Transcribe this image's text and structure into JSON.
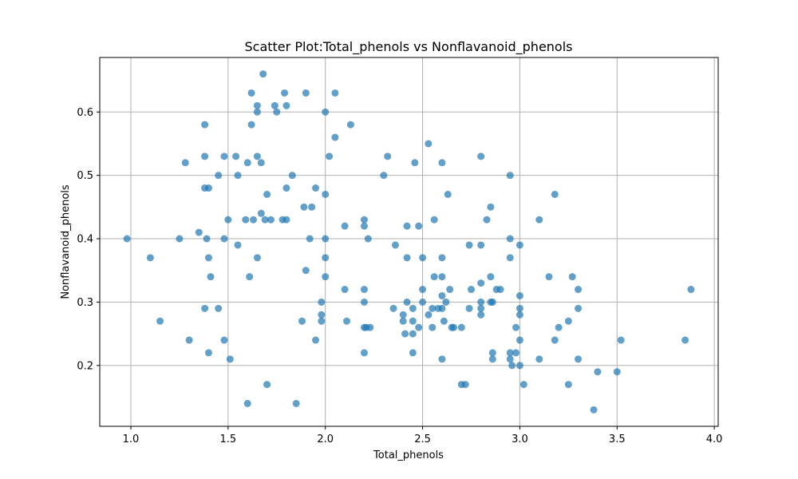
{
  "chart_data": {
    "type": "scatter",
    "title": "Scatter Plot:Total_phenols vs Nonflavanoid_phenols",
    "xlabel": "Total_phenols",
    "ylabel": "Nonflavanoid_phenols",
    "xlim": [
      0.84,
      4.02
    ],
    "ylim": [
      0.104,
      0.686
    ],
    "xticks": [
      1.0,
      1.5,
      2.0,
      2.5,
      3.0,
      3.5,
      4.0
    ],
    "xtick_labels": [
      "1.0",
      "1.5",
      "2.0",
      "2.5",
      "3.0",
      "3.5",
      "4.0"
    ],
    "yticks": [
      0.2,
      0.3,
      0.4,
      0.5,
      0.6
    ],
    "ytick_labels": [
      "0.2",
      "0.3",
      "0.4",
      "0.5",
      "0.6"
    ],
    "grid": true,
    "marker_color": "#1f77b4",
    "marker_alpha": 0.7,
    "points": [
      [
        0.98,
        0.4
      ],
      [
        1.1,
        0.37
      ],
      [
        1.15,
        0.27
      ],
      [
        1.25,
        0.4
      ],
      [
        1.28,
        0.52
      ],
      [
        1.3,
        0.24
      ],
      [
        1.35,
        0.41
      ],
      [
        1.38,
        0.58
      ],
      [
        1.38,
        0.53
      ],
      [
        1.38,
        0.48
      ],
      [
        1.38,
        0.29
      ],
      [
        1.39,
        0.4
      ],
      [
        1.4,
        0.48
      ],
      [
        1.4,
        0.37
      ],
      [
        1.4,
        0.22
      ],
      [
        1.41,
        0.34
      ],
      [
        1.45,
        0.5
      ],
      [
        1.45,
        0.29
      ],
      [
        1.48,
        0.53
      ],
      [
        1.48,
        0.4
      ],
      [
        1.48,
        0.24
      ],
      [
        1.5,
        0.43
      ],
      [
        1.51,
        0.21
      ],
      [
        1.54,
        0.53
      ],
      [
        1.55,
        0.5
      ],
      [
        1.55,
        0.39
      ],
      [
        1.59,
        0.43
      ],
      [
        1.6,
        0.52
      ],
      [
        1.6,
        0.14
      ],
      [
        1.61,
        0.34
      ],
      [
        1.62,
        0.63
      ],
      [
        1.62,
        0.58
      ],
      [
        1.63,
        0.43
      ],
      [
        1.65,
        0.61
      ],
      [
        1.65,
        0.6
      ],
      [
        1.65,
        0.53
      ],
      [
        1.65,
        0.37
      ],
      [
        1.67,
        0.52
      ],
      [
        1.67,
        0.44
      ],
      [
        1.68,
        0.66
      ],
      [
        1.69,
        0.43
      ],
      [
        1.7,
        0.47
      ],
      [
        1.7,
        0.17
      ],
      [
        1.72,
        0.43
      ],
      [
        1.74,
        0.61
      ],
      [
        1.75,
        0.6
      ],
      [
        1.78,
        0.43
      ],
      [
        1.79,
        0.63
      ],
      [
        1.8,
        0.61
      ],
      [
        1.8,
        0.48
      ],
      [
        1.8,
        0.43
      ],
      [
        1.83,
        0.5
      ],
      [
        1.85,
        0.14
      ],
      [
        1.88,
        0.27
      ],
      [
        1.89,
        0.45
      ],
      [
        1.9,
        0.63
      ],
      [
        1.9,
        0.35
      ],
      [
        1.92,
        0.4
      ],
      [
        1.93,
        0.45
      ],
      [
        1.95,
        0.48
      ],
      [
        1.95,
        0.24
      ],
      [
        1.98,
        0.3
      ],
      [
        1.98,
        0.28
      ],
      [
        1.98,
        0.27
      ],
      [
        2.0,
        0.6
      ],
      [
        2.0,
        0.47
      ],
      [
        2.0,
        0.4
      ],
      [
        2.0,
        0.37
      ],
      [
        2.0,
        0.34
      ],
      [
        2.02,
        0.53
      ],
      [
        2.05,
        0.63
      ],
      [
        2.05,
        0.56
      ],
      [
        2.1,
        0.42
      ],
      [
        2.1,
        0.32
      ],
      [
        2.11,
        0.27
      ],
      [
        2.13,
        0.58
      ],
      [
        2.2,
        0.43
      ],
      [
        2.2,
        0.42
      ],
      [
        2.2,
        0.32
      ],
      [
        2.2,
        0.3
      ],
      [
        2.2,
        0.26
      ],
      [
        2.2,
        0.22
      ],
      [
        2.21,
        0.26
      ],
      [
        2.22,
        0.4
      ],
      [
        2.23,
        0.26
      ],
      [
        2.3,
        0.5
      ],
      [
        2.32,
        0.53
      ],
      [
        2.35,
        0.29
      ],
      [
        2.36,
        0.39
      ],
      [
        2.4,
        0.28
      ],
      [
        2.4,
        0.27
      ],
      [
        2.41,
        0.25
      ],
      [
        2.42,
        0.42
      ],
      [
        2.42,
        0.37
      ],
      [
        2.42,
        0.3
      ],
      [
        2.45,
        0.29
      ],
      [
        2.45,
        0.27
      ],
      [
        2.45,
        0.25
      ],
      [
        2.45,
        0.22
      ],
      [
        2.46,
        0.52
      ],
      [
        2.48,
        0.42
      ],
      [
        2.48,
        0.26
      ],
      [
        2.5,
        0.37
      ],
      [
        2.5,
        0.32
      ],
      [
        2.5,
        0.3
      ],
      [
        2.53,
        0.55
      ],
      [
        2.53,
        0.28
      ],
      [
        2.55,
        0.29
      ],
      [
        2.55,
        0.26
      ],
      [
        2.56,
        0.43
      ],
      [
        2.56,
        0.34
      ],
      [
        2.58,
        0.29
      ],
      [
        2.6,
        0.52
      ],
      [
        2.6,
        0.37
      ],
      [
        2.6,
        0.34
      ],
      [
        2.6,
        0.31
      ],
      [
        2.6,
        0.29
      ],
      [
        2.6,
        0.21
      ],
      [
        2.61,
        0.27
      ],
      [
        2.62,
        0.3
      ],
      [
        2.63,
        0.47
      ],
      [
        2.64,
        0.32
      ],
      [
        2.65,
        0.26
      ],
      [
        2.66,
        0.26
      ],
      [
        2.7,
        0.26
      ],
      [
        2.7,
        0.17
      ],
      [
        2.72,
        0.17
      ],
      [
        2.74,
        0.39
      ],
      [
        2.74,
        0.29
      ],
      [
        2.75,
        0.32
      ],
      [
        2.8,
        0.53
      ],
      [
        2.8,
        0.39
      ],
      [
        2.8,
        0.33
      ],
      [
        2.8,
        0.3
      ],
      [
        2.8,
        0.29
      ],
      [
        2.8,
        0.28
      ],
      [
        2.83,
        0.43
      ],
      [
        2.85,
        0.45
      ],
      [
        2.85,
        0.34
      ],
      [
        2.85,
        0.3
      ],
      [
        2.86,
        0.3
      ],
      [
        2.86,
        0.22
      ],
      [
        2.86,
        0.21
      ],
      [
        2.88,
        0.32
      ],
      [
        2.9,
        0.32
      ],
      [
        2.95,
        0.5
      ],
      [
        2.95,
        0.4
      ],
      [
        2.95,
        0.37
      ],
      [
        2.95,
        0.22
      ],
      [
        2.95,
        0.21
      ],
      [
        2.96,
        0.2
      ],
      [
        2.98,
        0.26
      ],
      [
        2.98,
        0.22
      ],
      [
        3.0,
        0.39
      ],
      [
        3.0,
        0.31
      ],
      [
        3.0,
        0.29
      ],
      [
        3.0,
        0.28
      ],
      [
        3.0,
        0.24
      ],
      [
        3.0,
        0.2
      ],
      [
        3.02,
        0.17
      ],
      [
        3.1,
        0.43
      ],
      [
        3.1,
        0.21
      ],
      [
        3.15,
        0.34
      ],
      [
        3.18,
        0.47
      ],
      [
        3.18,
        0.24
      ],
      [
        3.2,
        0.26
      ],
      [
        3.25,
        0.27
      ],
      [
        3.25,
        0.17
      ],
      [
        3.27,
        0.34
      ],
      [
        3.3,
        0.32
      ],
      [
        3.3,
        0.29
      ],
      [
        3.3,
        0.21
      ],
      [
        3.38,
        0.13
      ],
      [
        3.4,
        0.19
      ],
      [
        3.5,
        0.19
      ],
      [
        3.52,
        0.24
      ],
      [
        3.85,
        0.24
      ],
      [
        3.88,
        0.32
      ]
    ]
  }
}
